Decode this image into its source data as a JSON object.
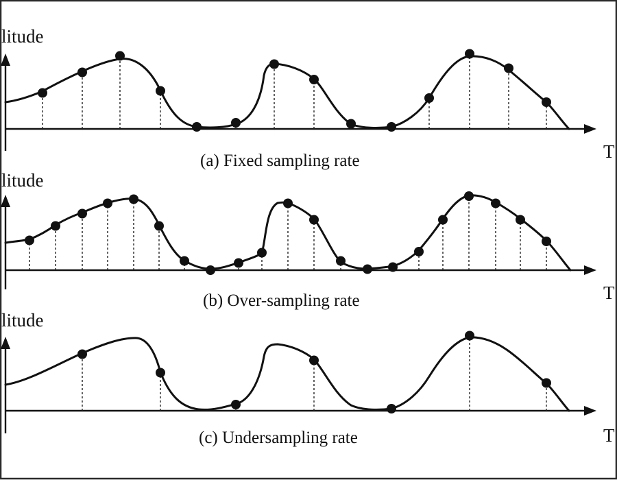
{
  "colors": {
    "ink": "#111111",
    "background": "#ffffff",
    "frame": "#2a2a2a"
  },
  "panels": [
    {
      "id": "a",
      "y_axis_label": "litude",
      "x_axis_label": "T",
      "caption": "(a) Fixed sampling rate",
      "samples": [
        {
          "t": 62,
          "level": 0.35
        },
        {
          "t": 120,
          "level": 0.55
        },
        {
          "t": 175,
          "level": 0.71
        },
        {
          "t": 234,
          "level": 0.37
        },
        {
          "t": 287,
          "level": 0.02
        },
        {
          "t": 344,
          "level": 0.06
        },
        {
          "t": 400,
          "level": 0.63
        },
        {
          "t": 458,
          "level": 0.48
        },
        {
          "t": 512,
          "level": 0.05
        },
        {
          "t": 571,
          "level": 0.02
        },
        {
          "t": 626,
          "level": 0.3
        },
        {
          "t": 685,
          "level": 0.73
        },
        {
          "t": 742,
          "level": 0.59
        },
        {
          "t": 797,
          "level": 0.26
        }
      ]
    },
    {
      "id": "b",
      "y_axis_label": "litude",
      "x_axis_label": "T",
      "caption": "(b) Over-sampling rate",
      "samples": [
        {
          "t": 43,
          "level": 0.29
        },
        {
          "t": 81,
          "level": 0.43
        },
        {
          "t": 120,
          "level": 0.55
        },
        {
          "t": 157,
          "level": 0.65
        },
        {
          "t": 195,
          "level": 0.69
        },
        {
          "t": 232,
          "level": 0.43
        },
        {
          "t": 269,
          "level": 0.09
        },
        {
          "t": 307,
          "level": 0.0
        },
        {
          "t": 348,
          "level": 0.07
        },
        {
          "t": 382,
          "level": 0.17
        },
        {
          "t": 420,
          "level": 0.65
        },
        {
          "t": 458,
          "level": 0.49
        },
        {
          "t": 497,
          "level": 0.09
        },
        {
          "t": 536,
          "level": 0.01
        },
        {
          "t": 573,
          "level": 0.03
        },
        {
          "t": 611,
          "level": 0.18
        },
        {
          "t": 646,
          "level": 0.49
        },
        {
          "t": 684,
          "level": 0.72
        },
        {
          "t": 723,
          "level": 0.65
        },
        {
          "t": 759,
          "level": 0.49
        },
        {
          "t": 797,
          "level": 0.28
        }
      ]
    },
    {
      "id": "c",
      "y_axis_label": "litude",
      "x_axis_label": "T",
      "caption": "(c) Undersampling rate",
      "samples": [
        {
          "t": 120,
          "level": 0.55
        },
        {
          "t": 234,
          "level": 0.37
        },
        {
          "t": 344,
          "level": 0.06
        },
        {
          "t": 458,
          "level": 0.49
        },
        {
          "t": 571,
          "level": 0.02
        },
        {
          "t": 685,
          "level": 0.73
        },
        {
          "t": 797,
          "level": 0.27
        }
      ]
    }
  ]
}
